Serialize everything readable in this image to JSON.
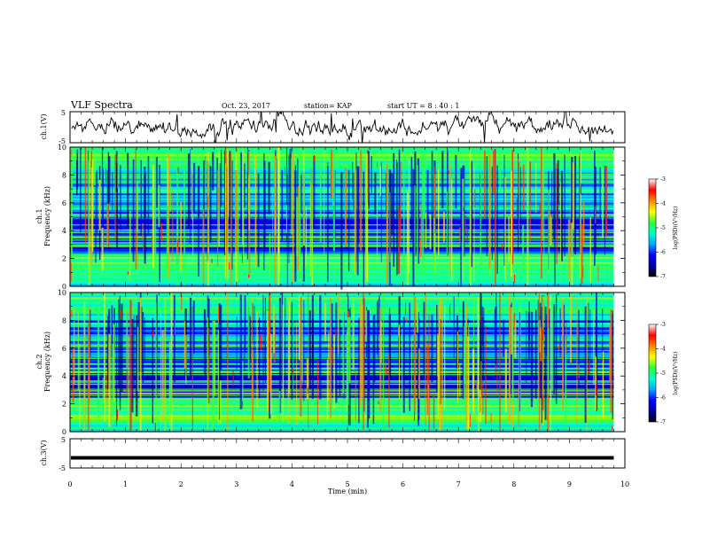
{
  "header": {
    "title": "VLF Spectra",
    "date": "Oct. 23, 2017",
    "station": "station= KAP",
    "start": "start  UT =   8 : 40 : 1"
  },
  "chart_data": [
    {
      "type": "line",
      "name": "ch1-waveform",
      "ylabel": "ch.1(V)",
      "ylim": [
        -5,
        5
      ],
      "yticks": [
        -5,
        5
      ],
      "x_range": [
        0,
        9.8
      ],
      "style": "noisy",
      "color": "#000000"
    },
    {
      "type": "heatmap",
      "name": "ch1-spectrogram",
      "ylabel_top": "ch.1",
      "ylabel": "Frequency  (kHz)",
      "ylim": [
        0,
        10
      ],
      "yticks": [
        0,
        2,
        4,
        6,
        8,
        10
      ],
      "x_range": [
        0,
        9.8
      ],
      "colorbar": {
        "label": "log(PSD)(V²/Hz)",
        "ticks": [
          -3,
          -4,
          -5,
          -6,
          -7
        ],
        "range": [
          -7,
          -3
        ],
        "colors": [
          "#000000",
          "#0000aa",
          "#0000ff",
          "#00aaff",
          "#00ffcc",
          "#33ff33",
          "#ffff00",
          "#ff8800",
          "#ff0000",
          "#ffffff"
        ]
      }
    },
    {
      "type": "heatmap",
      "name": "ch2-spectrogram",
      "ylabel_top": "ch.2",
      "ylabel": "Frequency  (kHz)",
      "ylim": [
        0,
        10
      ],
      "yticks": [
        0,
        2,
        4,
        6,
        8,
        10
      ],
      "x_range": [
        0,
        9.8
      ],
      "colorbar": {
        "label": "log(PSD)(V²/Hz)",
        "ticks": [
          -3,
          -4,
          -5,
          -6,
          -7
        ],
        "range": [
          -7,
          -3
        ],
        "colors": [
          "#000000",
          "#0000aa",
          "#0000ff",
          "#00aaff",
          "#00ffcc",
          "#33ff33",
          "#ffff00",
          "#ff8800",
          "#ff0000",
          "#ffffff"
        ]
      }
    },
    {
      "type": "line",
      "name": "ch3-waveform",
      "ylabel": "ch.3(V)",
      "ylim": [
        -5,
        5
      ],
      "yticks": [
        -5,
        5
      ],
      "x_range": [
        0,
        9.8
      ],
      "value": -1.5,
      "color": "#000000"
    }
  ],
  "xaxis": {
    "label": "Time  (min)",
    "ticks": [
      0,
      1,
      2,
      3,
      4,
      5,
      6,
      7,
      8,
      9,
      10
    ],
    "range": [
      0,
      10
    ]
  }
}
